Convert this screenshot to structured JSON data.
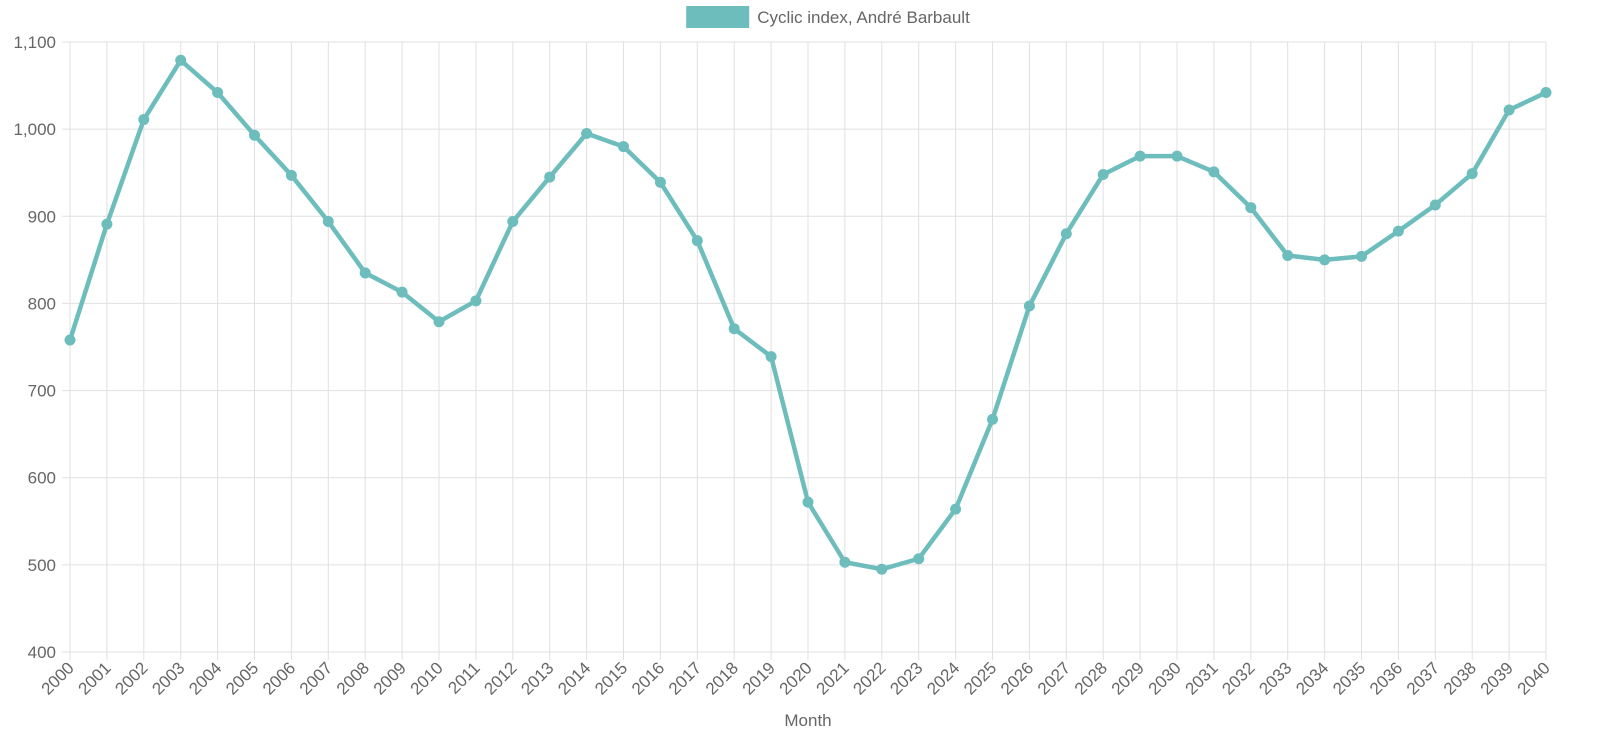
{
  "chart_data": {
    "type": "line",
    "title": "",
    "xlabel": "Month",
    "ylabel": "",
    "ylim": [
      400,
      1100
    ],
    "y_ticks": [
      400,
      500,
      600,
      700,
      800,
      900,
      1000,
      1100
    ],
    "y_tick_labels": [
      "400",
      "500",
      "600",
      "700",
      "800",
      "900",
      "1,000",
      "1,100"
    ],
    "grid": true,
    "legend_position": "top-center",
    "categories": [
      "2000",
      "2001",
      "2002",
      "2003",
      "2004",
      "2005",
      "2006",
      "2007",
      "2008",
      "2009",
      "2010",
      "2011",
      "2012",
      "2013",
      "2014",
      "2015",
      "2016",
      "2017",
      "2018",
      "2019",
      "2020",
      "2021",
      "2022",
      "2023",
      "2024",
      "2025",
      "2026",
      "2027",
      "2028",
      "2029",
      "2030",
      "2031",
      "2032",
      "2033",
      "2034",
      "2035",
      "2036",
      "2037",
      "2038",
      "2039",
      "2040"
    ],
    "series": [
      {
        "name": "Cyclic index, André Barbault",
        "color": "#6dbdbd",
        "values": [
          758,
          891,
          1011,
          1079,
          1042,
          993,
          947,
          894,
          835,
          813,
          779,
          803,
          894,
          945,
          995,
          980,
          939,
          872,
          771,
          739,
          572,
          503,
          495,
          507,
          564,
          667,
          797,
          880,
          948,
          969,
          969,
          951,
          910,
          855,
          850,
          854,
          883,
          913,
          949,
          1022,
          1042
        ]
      }
    ]
  },
  "colors": {
    "grid": "#e0e0e0",
    "text": "#666666",
    "series": "#6dbdbd"
  }
}
